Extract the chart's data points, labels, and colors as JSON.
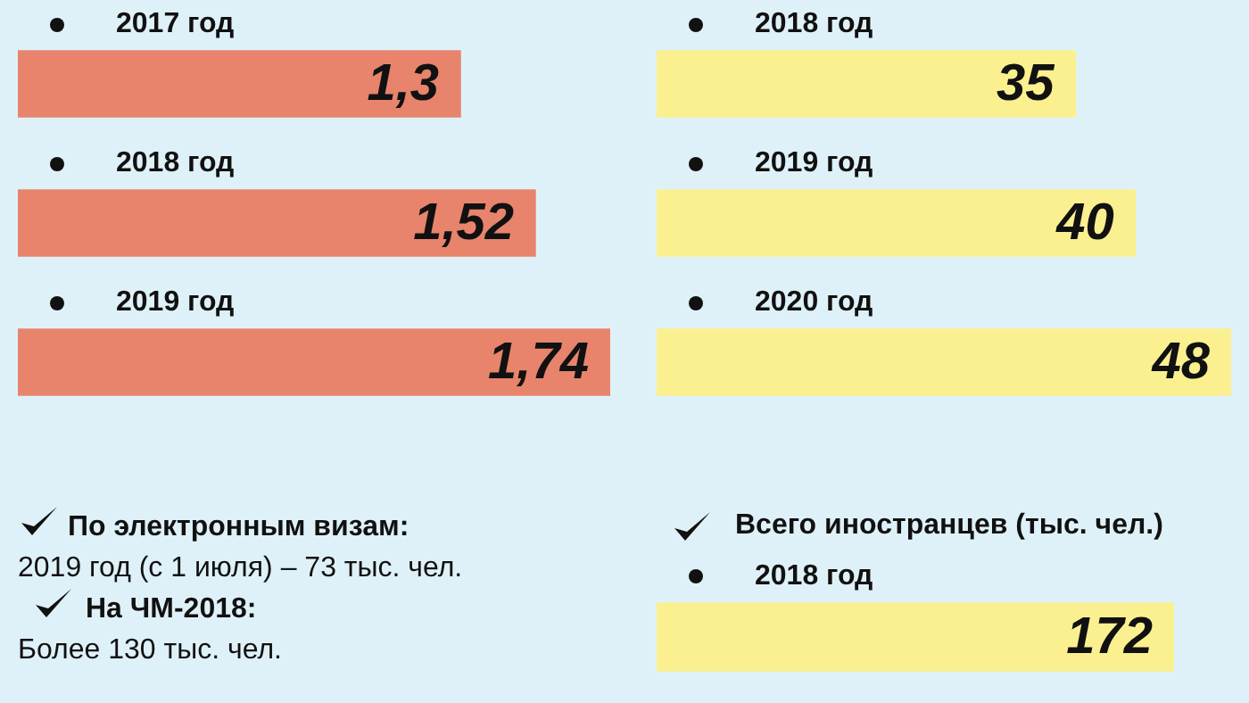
{
  "chart_data": [
    {
      "type": "bar",
      "orientation": "horizontal",
      "categories": [
        "2017 год",
        "2018 год",
        "2019 год"
      ],
      "values": [
        1.3,
        1.52,
        1.74
      ],
      "color": "#e8846c",
      "value_labels": [
        "1,3",
        "1,52",
        "1,74"
      ]
    },
    {
      "type": "bar",
      "orientation": "horizontal",
      "categories": [
        "2018 год",
        "2019 год",
        "2020 год"
      ],
      "values": [
        35,
        40,
        48
      ],
      "color": "#fbf08f",
      "value_labels": [
        "35",
        "40",
        "48"
      ]
    },
    {
      "type": "other",
      "annotations": [
        "По электронным визам:",
        "2019 год (с 1 июля) – 73 тыс. чел.",
        "На ЧМ-2018:",
        "Более 130 тыс. чел."
      ]
    },
    {
      "type": "bar",
      "orientation": "horizontal",
      "title": "Всего иностранцев (тыс. чел.)",
      "categories": [
        "2018 год"
      ],
      "values": [
        172
      ],
      "color": "#fbf08f",
      "value_labels": [
        "172"
      ]
    }
  ]
}
